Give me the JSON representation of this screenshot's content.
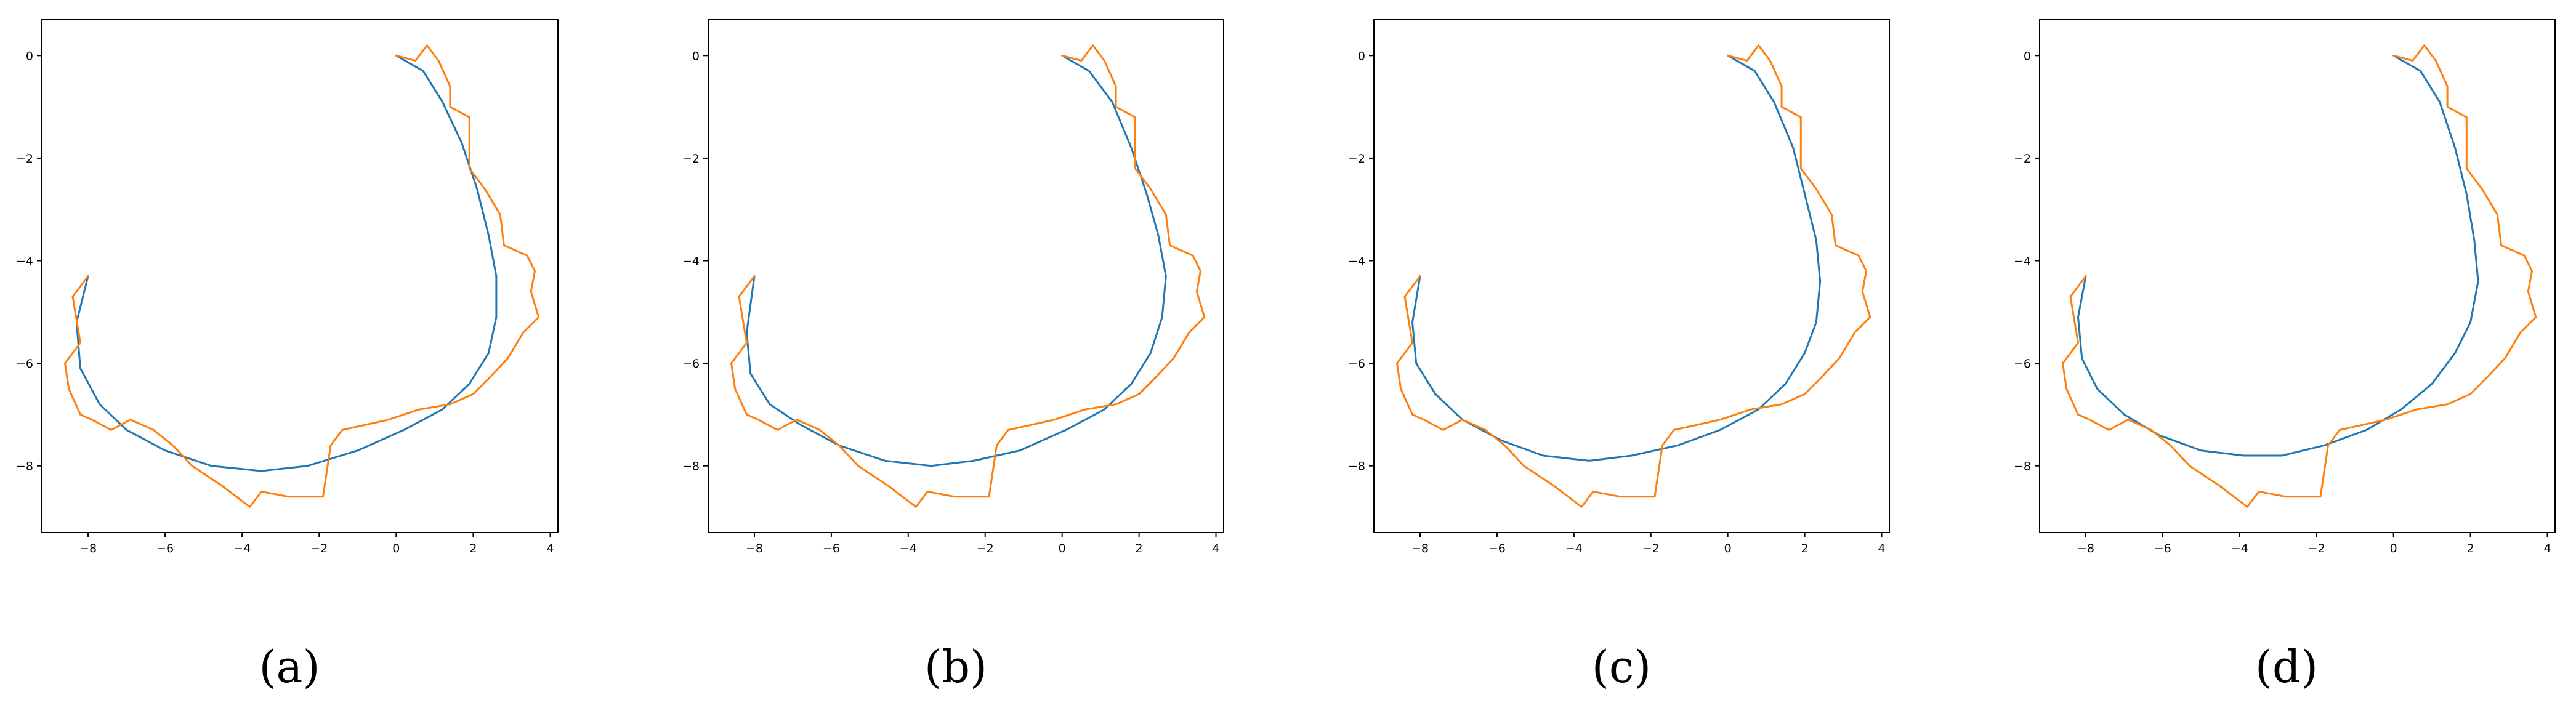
{
  "chart_data": [
    {
      "type": "line",
      "caption": "(a)",
      "xlim": [
        -9.2,
        4.2
      ],
      "ylim": [
        -9.3,
        0.7
      ],
      "xticks": [
        -8,
        -6,
        -4,
        -2,
        0,
        2,
        4
      ],
      "yticks": [
        0,
        -2,
        -4,
        -6,
        -8
      ],
      "series": [
        {
          "color": "#1f77b4",
          "x": [
            0.0,
            0.7,
            1.2,
            1.7,
            2.1,
            2.4,
            2.6,
            2.6,
            2.4,
            1.9,
            1.2,
            0.2,
            -1.0,
            -2.3,
            -3.5,
            -4.8,
            -6.0,
            -7.0,
            -7.7,
            -8.2,
            -8.3,
            -8.0
          ],
          "y": [
            0.0,
            -0.3,
            -0.9,
            -1.7,
            -2.6,
            -3.5,
            -4.3,
            -5.1,
            -5.8,
            -6.4,
            -6.9,
            -7.3,
            -7.7,
            -8.0,
            -8.1,
            -8.0,
            -7.7,
            -7.3,
            -6.8,
            -6.1,
            -5.2,
            -4.3
          ]
        },
        {
          "color": "#ff7f0e",
          "x": [
            0.0,
            0.5,
            0.8,
            1.1,
            1.4,
            1.4,
            1.9,
            1.9,
            2.3,
            2.7,
            2.8,
            3.4,
            3.6,
            3.5,
            3.7,
            3.3,
            2.9,
            2.4,
            2.0,
            1.4,
            0.6,
            -0.2,
            -0.8,
            -1.4,
            -1.7,
            -1.9,
            -2.8,
            -3.5,
            -3.8,
            -4.5,
            -5.3,
            -5.8,
            -6.3,
            -6.9,
            -7.4,
            -7.9,
            -8.2,
            -8.5,
            -8.6,
            -8.2,
            -8.4,
            -8.0
          ],
          "y": [
            0.0,
            -0.1,
            0.2,
            -0.1,
            -0.6,
            -1.0,
            -1.2,
            -2.2,
            -2.6,
            -3.1,
            -3.7,
            -3.9,
            -4.2,
            -4.6,
            -5.1,
            -5.4,
            -5.9,
            -6.3,
            -6.6,
            -6.8,
            -6.9,
            -7.1,
            -7.2,
            -7.3,
            -7.6,
            -8.6,
            -8.6,
            -8.5,
            -8.8,
            -8.4,
            -8.0,
            -7.6,
            -7.3,
            -7.1,
            -7.3,
            -7.1,
            -7.0,
            -6.5,
            -6.0,
            -5.6,
            -4.7,
            -4.3
          ]
        }
      ]
    },
    {
      "type": "line",
      "caption": "(b)",
      "xlim": [
        -9.2,
        4.2
      ],
      "ylim": [
        -9.3,
        0.7
      ],
      "xticks": [
        -8,
        -6,
        -4,
        -2,
        0,
        2,
        4
      ],
      "yticks": [
        0,
        -2,
        -4,
        -6,
        -8
      ],
      "series": [
        {
          "color": "#1f77b4",
          "x": [
            0.0,
            0.7,
            1.3,
            1.8,
            2.2,
            2.5,
            2.7,
            2.6,
            2.3,
            1.8,
            1.1,
            0.1,
            -1.1,
            -2.3,
            -3.4,
            -4.6,
            -5.8,
            -6.8,
            -7.6,
            -8.1,
            -8.2,
            -8.0
          ],
          "y": [
            0.0,
            -0.3,
            -0.9,
            -1.8,
            -2.7,
            -3.5,
            -4.3,
            -5.1,
            -5.8,
            -6.4,
            -6.9,
            -7.3,
            -7.7,
            -7.9,
            -8.0,
            -7.9,
            -7.6,
            -7.2,
            -6.8,
            -6.2,
            -5.4,
            -4.3
          ]
        },
        {
          "color": "#ff7f0e",
          "x": [
            0.0,
            0.5,
            0.8,
            1.1,
            1.4,
            1.4,
            1.9,
            1.9,
            2.3,
            2.7,
            2.8,
            3.4,
            3.6,
            3.5,
            3.7,
            3.3,
            2.9,
            2.4,
            2.0,
            1.4,
            0.6,
            -0.2,
            -0.8,
            -1.4,
            -1.7,
            -1.9,
            -2.8,
            -3.5,
            -3.8,
            -4.5,
            -5.3,
            -5.8,
            -6.3,
            -6.9,
            -7.4,
            -7.9,
            -8.2,
            -8.5,
            -8.6,
            -8.2,
            -8.4,
            -8.0
          ],
          "y": [
            0.0,
            -0.1,
            0.2,
            -0.1,
            -0.6,
            -1.0,
            -1.2,
            -2.2,
            -2.6,
            -3.1,
            -3.7,
            -3.9,
            -4.2,
            -4.6,
            -5.1,
            -5.4,
            -5.9,
            -6.3,
            -6.6,
            -6.8,
            -6.9,
            -7.1,
            -7.2,
            -7.3,
            -7.6,
            -8.6,
            -8.6,
            -8.5,
            -8.8,
            -8.4,
            -8.0,
            -7.6,
            -7.3,
            -7.1,
            -7.3,
            -7.1,
            -7.0,
            -6.5,
            -6.0,
            -5.6,
            -4.7,
            -4.3
          ]
        }
      ]
    },
    {
      "type": "line",
      "caption": "(c)",
      "xlim": [
        -9.2,
        4.2
      ],
      "ylim": [
        -9.3,
        0.7
      ],
      "xticks": [
        -8,
        -6,
        -4,
        -2,
        0,
        2,
        4
      ],
      "yticks": [
        0,
        -2,
        -4,
        -6,
        -8
      ],
      "series": [
        {
          "color": "#1f77b4",
          "x": [
            0.0,
            0.7,
            1.2,
            1.7,
            2.0,
            2.3,
            2.4,
            2.3,
            2.0,
            1.5,
            0.8,
            -0.2,
            -1.3,
            -2.5,
            -3.6,
            -4.8,
            -5.9,
            -6.9,
            -7.6,
            -8.1,
            -8.2,
            -8.0
          ],
          "y": [
            0.0,
            -0.3,
            -0.9,
            -1.8,
            -2.7,
            -3.6,
            -4.4,
            -5.2,
            -5.8,
            -6.4,
            -6.9,
            -7.3,
            -7.6,
            -7.8,
            -7.9,
            -7.8,
            -7.5,
            -7.1,
            -6.6,
            -6.0,
            -5.2,
            -4.3
          ]
        },
        {
          "color": "#ff7f0e",
          "x": [
            0.0,
            0.5,
            0.8,
            1.1,
            1.4,
            1.4,
            1.9,
            1.9,
            2.3,
            2.7,
            2.8,
            3.4,
            3.6,
            3.5,
            3.7,
            3.3,
            2.9,
            2.4,
            2.0,
            1.4,
            0.6,
            -0.2,
            -0.8,
            -1.4,
            -1.7,
            -1.9,
            -2.8,
            -3.5,
            -3.8,
            -4.5,
            -5.3,
            -5.8,
            -6.3,
            -6.9,
            -7.4,
            -7.9,
            -8.2,
            -8.5,
            -8.6,
            -8.2,
            -8.4,
            -8.0
          ],
          "y": [
            0.0,
            -0.1,
            0.2,
            -0.1,
            -0.6,
            -1.0,
            -1.2,
            -2.2,
            -2.6,
            -3.1,
            -3.7,
            -3.9,
            -4.2,
            -4.6,
            -5.1,
            -5.4,
            -5.9,
            -6.3,
            -6.6,
            -6.8,
            -6.9,
            -7.1,
            -7.2,
            -7.3,
            -7.6,
            -8.6,
            -8.6,
            -8.5,
            -8.8,
            -8.4,
            -8.0,
            -7.6,
            -7.3,
            -7.1,
            -7.3,
            -7.1,
            -7.0,
            -6.5,
            -6.0,
            -5.6,
            -4.7,
            -4.3
          ]
        }
      ]
    },
    {
      "type": "line",
      "caption": "(d)",
      "xlim": [
        -9.2,
        4.2
      ],
      "ylim": [
        -9.3,
        0.7
      ],
      "xticks": [
        -8,
        -6,
        -4,
        -2,
        0,
        2,
        4
      ],
      "yticks": [
        0,
        -2,
        -4,
        -6,
        -8
      ],
      "series": [
        {
          "color": "#1f77b4",
          "x": [
            0.0,
            0.7,
            1.2,
            1.6,
            1.9,
            2.1,
            2.2,
            2.0,
            1.6,
            1.0,
            0.2,
            -0.7,
            -1.8,
            -2.9,
            -3.9,
            -5.0,
            -6.1,
            -7.0,
            -7.7,
            -8.1,
            -8.2,
            -8.0
          ],
          "y": [
            0.0,
            -0.3,
            -0.9,
            -1.8,
            -2.7,
            -3.6,
            -4.4,
            -5.2,
            -5.8,
            -6.4,
            -6.9,
            -7.3,
            -7.6,
            -7.8,
            -7.8,
            -7.7,
            -7.4,
            -7.0,
            -6.5,
            -5.9,
            -5.1,
            -4.3
          ]
        },
        {
          "color": "#ff7f0e",
          "x": [
            0.0,
            0.5,
            0.8,
            1.1,
            1.4,
            1.4,
            1.9,
            1.9,
            2.3,
            2.7,
            2.8,
            3.4,
            3.6,
            3.5,
            3.7,
            3.3,
            2.9,
            2.4,
            2.0,
            1.4,
            0.6,
            -0.2,
            -0.8,
            -1.4,
            -1.7,
            -1.9,
            -2.8,
            -3.5,
            -3.8,
            -4.5,
            -5.3,
            -5.8,
            -6.3,
            -6.9,
            -7.4,
            -7.9,
            -8.2,
            -8.5,
            -8.6,
            -8.2,
            -8.4,
            -8.0
          ],
          "y": [
            0.0,
            -0.1,
            0.2,
            -0.1,
            -0.6,
            -1.0,
            -1.2,
            -2.2,
            -2.6,
            -3.1,
            -3.7,
            -3.9,
            -4.2,
            -4.6,
            -5.1,
            -5.4,
            -5.9,
            -6.3,
            -6.6,
            -6.8,
            -6.9,
            -7.1,
            -7.2,
            -7.3,
            -7.6,
            -8.6,
            -8.6,
            -8.5,
            -8.8,
            -8.4,
            -8.0,
            -7.6,
            -7.3,
            -7.1,
            -7.3,
            -7.1,
            -7.0,
            -6.5,
            -6.0,
            -5.6,
            -4.7,
            -4.3
          ]
        }
      ]
    }
  ]
}
